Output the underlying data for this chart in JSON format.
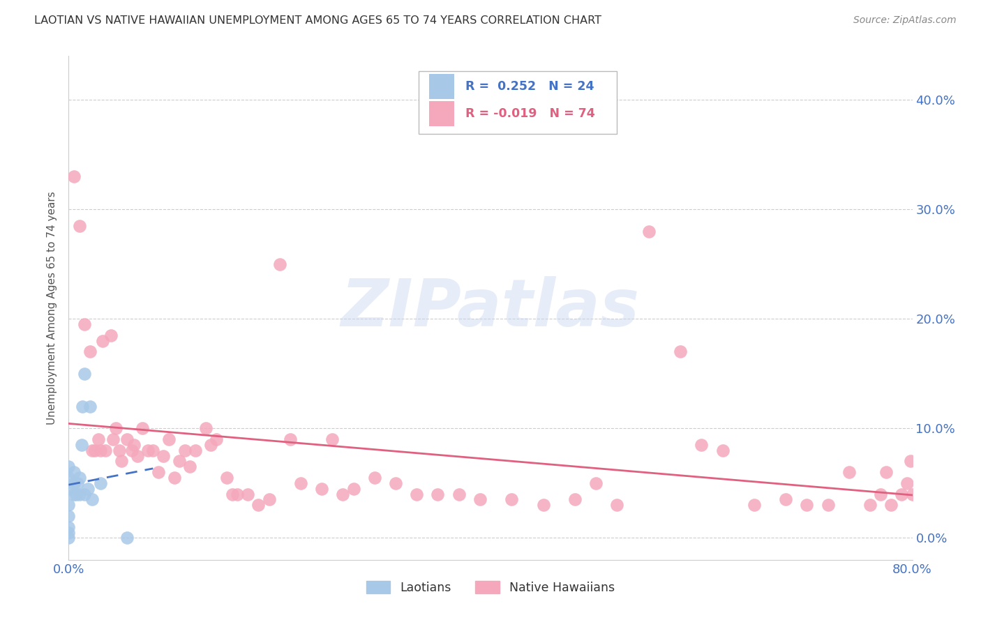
{
  "title": "LAOTIAN VS NATIVE HAWAIIAN UNEMPLOYMENT AMONG AGES 65 TO 74 YEARS CORRELATION CHART",
  "source": "Source: ZipAtlas.com",
  "ylabel": "Unemployment Among Ages 65 to 74 years",
  "ytick_labels": [
    "0.0%",
    "10.0%",
    "20.0%",
    "30.0%",
    "40.0%"
  ],
  "ytick_values": [
    0.0,
    0.1,
    0.2,
    0.3,
    0.4
  ],
  "xtick_left": "0.0%",
  "xtick_right": "80.0%",
  "xlim": [
    0.0,
    0.8
  ],
  "ylim": [
    -0.02,
    0.44
  ],
  "legend_r_laotian": " 0.252",
  "legend_n_laotian": "24",
  "legend_r_native": "-0.019",
  "legend_n_native": "74",
  "laotian_color": "#a8c8e8",
  "native_color": "#f5a8bc",
  "trendline_laotian_color": "#4472c4",
  "trendline_native_color": "#e06080",
  "watermark_text": "ZIPatlas",
  "title_color": "#333333",
  "axis_label_color": "#4472c4",
  "legend_label_laotian": "Laotians",
  "legend_label_native": "Native Hawaiians",
  "laotian_x": [
    0.0,
    0.0,
    0.0,
    0.0,
    0.0,
    0.0,
    0.0,
    0.0,
    0.005,
    0.005,
    0.005,
    0.007,
    0.008,
    0.01,
    0.01,
    0.012,
    0.013,
    0.015,
    0.015,
    0.018,
    0.02,
    0.022,
    0.03,
    0.055
  ],
  "laotian_y": [
    0.0,
    0.005,
    0.01,
    0.02,
    0.03,
    0.045,
    0.055,
    0.065,
    0.04,
    0.05,
    0.06,
    0.04,
    0.05,
    0.04,
    0.055,
    0.085,
    0.12,
    0.04,
    0.15,
    0.045,
    0.12,
    0.035,
    0.05,
    0.0
  ],
  "native_x": [
    0.005,
    0.01,
    0.015,
    0.02,
    0.022,
    0.025,
    0.028,
    0.03,
    0.032,
    0.035,
    0.04,
    0.042,
    0.045,
    0.048,
    0.05,
    0.055,
    0.06,
    0.062,
    0.065,
    0.07,
    0.075,
    0.08,
    0.085,
    0.09,
    0.095,
    0.1,
    0.105,
    0.11,
    0.115,
    0.12,
    0.13,
    0.135,
    0.14,
    0.15,
    0.155,
    0.16,
    0.17,
    0.18,
    0.19,
    0.2,
    0.21,
    0.22,
    0.24,
    0.25,
    0.26,
    0.27,
    0.29,
    0.31,
    0.33,
    0.35,
    0.37,
    0.39,
    0.42,
    0.45,
    0.48,
    0.5,
    0.52,
    0.55,
    0.58,
    0.6,
    0.62,
    0.65,
    0.68,
    0.7,
    0.72,
    0.74,
    0.76,
    0.77,
    0.775,
    0.78,
    0.79,
    0.795,
    0.798,
    0.8
  ],
  "native_y": [
    0.33,
    0.285,
    0.195,
    0.17,
    0.08,
    0.08,
    0.09,
    0.08,
    0.18,
    0.08,
    0.185,
    0.09,
    0.1,
    0.08,
    0.07,
    0.09,
    0.08,
    0.085,
    0.075,
    0.1,
    0.08,
    0.08,
    0.06,
    0.075,
    0.09,
    0.055,
    0.07,
    0.08,
    0.065,
    0.08,
    0.1,
    0.085,
    0.09,
    0.055,
    0.04,
    0.04,
    0.04,
    0.03,
    0.035,
    0.25,
    0.09,
    0.05,
    0.045,
    0.09,
    0.04,
    0.045,
    0.055,
    0.05,
    0.04,
    0.04,
    0.04,
    0.035,
    0.035,
    0.03,
    0.035,
    0.05,
    0.03,
    0.28,
    0.17,
    0.085,
    0.08,
    0.03,
    0.035,
    0.03,
    0.03,
    0.06,
    0.03,
    0.04,
    0.06,
    0.03,
    0.04,
    0.05,
    0.07,
    0.04
  ]
}
